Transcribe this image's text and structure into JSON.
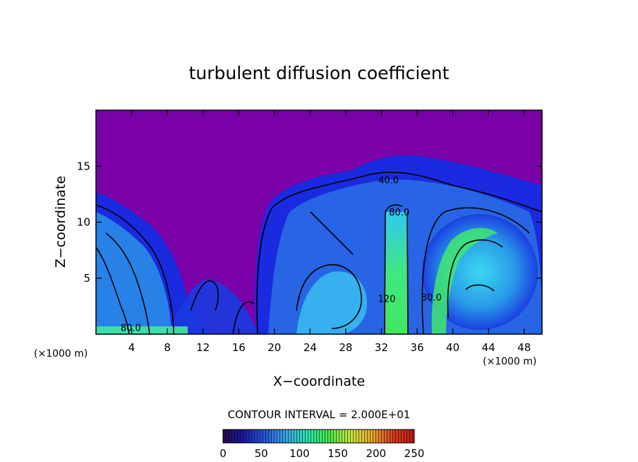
{
  "chart_data": {
    "type": "heatmap",
    "title": "turbulent diffusion coefficient",
    "xlabel": "X−coordinate",
    "ylabel": "Z−coordinate",
    "x_unit_left": "(×1000 m)",
    "x_unit_right": "(×1000 m)",
    "xlim": [
      0,
      50
    ],
    "ylim": [
      0,
      20
    ],
    "x_ticks": [
      4,
      8,
      12,
      16,
      20,
      24,
      28,
      32,
      36,
      40,
      44,
      48
    ],
    "y_ticks": [
      5,
      10,
      15
    ],
    "grid": false,
    "contour_interval_text": "CONTOUR INTERVAL = 2.000E+01",
    "contour_labels": [
      {
        "text": "40.0",
        "x": 32.8,
        "y": 13.8
      },
      {
        "text": "80.0",
        "x": 34.0,
        "y": 10.9
      },
      {
        "text": "80.0",
        "x": 3.9,
        "y": 0.6
      },
      {
        "text": "120",
        "x": 32.6,
        "y": 3.2
      },
      {
        "text": "80.0",
        "x": 37.6,
        "y": 3.3
      }
    ],
    "colorbar": {
      "ticks": [
        0,
        50,
        100,
        150,
        200,
        250
      ],
      "range": [
        0,
        250
      ],
      "colors": [
        "#2a0a4a",
        "#1a1aa8",
        "#2a5ad8",
        "#3aa8e8",
        "#2ae8a8",
        "#48e848",
        "#c8e840",
        "#e8a830",
        "#d84020",
        "#c01818"
      ]
    },
    "colors": {
      "background": "#7a00a8",
      "plume_blue": "#1a2ae0",
      "plume_light": "#38b8f0",
      "core_green": "#38e868"
    }
  }
}
